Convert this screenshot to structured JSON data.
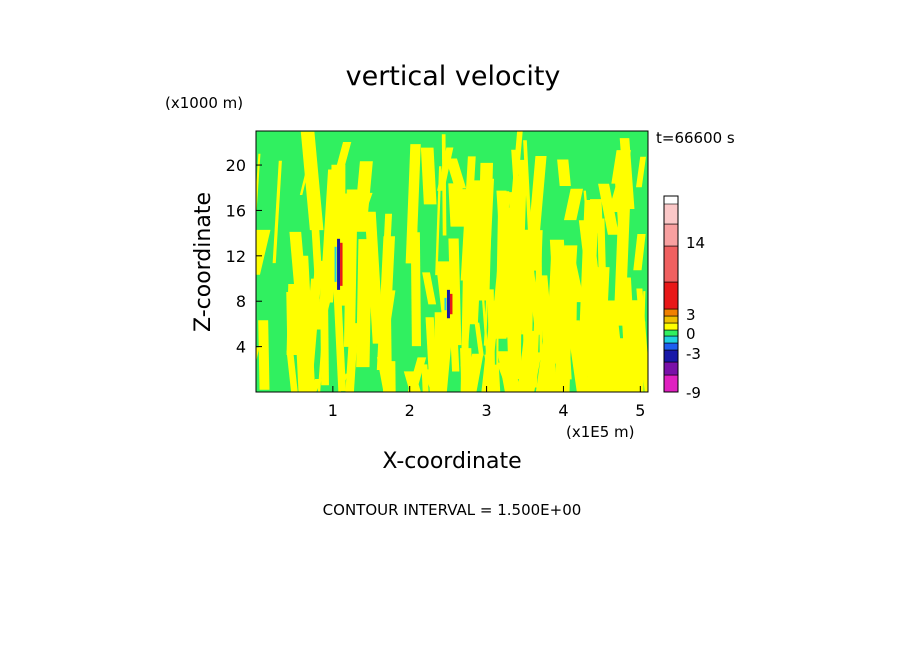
{
  "chart_data": {
    "type": "heatmap",
    "title": "vertical velocity",
    "xlabel": "X-coordinate",
    "ylabel": "Z-coordinate",
    "x_unit": "(x1E5 m)",
    "y_unit": "(x1000 m)",
    "time_label": "t=66600 s",
    "xlim": [
      0,
      5.1
    ],
    "ylim": [
      0,
      23
    ],
    "x_ticks": [
      1,
      2,
      3,
      4,
      5
    ],
    "y_ticks": [
      4,
      8,
      12,
      16,
      20
    ],
    "contour_interval_text": "CONTOUR INTERVAL = 1.500E+00",
    "colorbar": {
      "levels": [
        {
          "color": "#e020c0"
        },
        {
          "color": "#7a10a8"
        },
        {
          "color": "#1818a8"
        },
        {
          "color": "#1e5ef0"
        },
        {
          "color": "#20d0e0"
        },
        {
          "color": "#30f060"
        },
        {
          "color": "#ffff00"
        },
        {
          "color": "#f0c000"
        },
        {
          "color": "#f08000"
        },
        {
          "color": "#e81818"
        },
        {
          "color": "#f06060"
        },
        {
          "color": "#f8a0a0"
        },
        {
          "color": "#fbc8c8"
        }
      ],
      "labels": [
        "-9",
        "-3",
        "0",
        "3",
        "14"
      ]
    },
    "features": [
      {
        "kind": "updraft-downdraft pair",
        "x": 1.1,
        "z_range": [
          9,
          13.5
        ]
      },
      {
        "kind": "updraft-downdraft pair",
        "x": 2.53,
        "z_range": [
          6.5,
          9
        ]
      }
    ],
    "background_colors": {
      "green": "#30f060",
      "yellow": "#ffff00"
    }
  }
}
